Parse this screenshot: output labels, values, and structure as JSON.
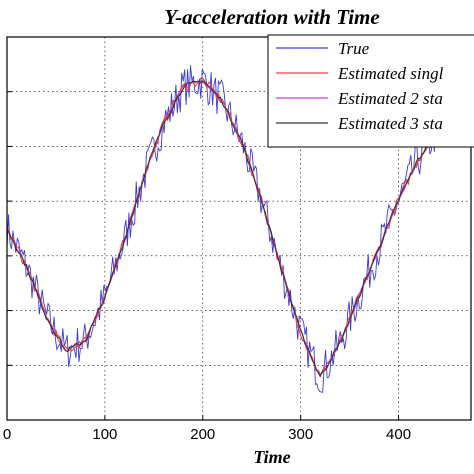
{
  "chart_data": {
    "type": "line",
    "title": "Y-acceleration with Time",
    "xlabel": "Time",
    "ylabel": "",
    "xlim": [
      0,
      474
    ],
    "ylim": [
      -2,
      2
    ],
    "x_ticks": [
      0,
      100,
      200,
      300,
      400
    ],
    "x_tick_labels": [
      "0",
      "100",
      "200",
      "300",
      "400"
    ],
    "grid": true,
    "legend_position": "top-right",
    "legend": [
      "True",
      "Estimated singl",
      "Estimated 2 sta",
      "Estimated 3 sta"
    ],
    "series_colors": [
      "#3b3bd8",
      "#e8404a",
      "#d040d0",
      "#333333"
    ],
    "x": [
      0,
      20,
      40,
      60,
      80,
      100,
      120,
      140,
      160,
      180,
      200,
      220,
      240,
      260,
      280,
      300,
      320,
      340,
      360,
      380,
      400,
      420,
      440,
      460,
      474
    ],
    "series": [
      {
        "name": "True",
        "values": [
          0.0,
          -0.4,
          -0.92,
          -1.28,
          -1.17,
          -0.72,
          -0.12,
          0.55,
          1.1,
          1.48,
          1.55,
          1.33,
          0.9,
          0.3,
          -0.42,
          -1.08,
          -1.55,
          -1.2,
          -0.7,
          -0.2,
          0.3,
          0.72,
          1.02,
          1.18,
          1.2
        ]
      },
      {
        "name": "Estimated singl",
        "values": [
          0.0,
          -0.4,
          -0.92,
          -1.28,
          -1.17,
          -0.72,
          -0.12,
          0.55,
          1.1,
          1.48,
          1.55,
          1.33,
          0.9,
          0.3,
          -0.42,
          -1.08,
          -1.55,
          -1.2,
          -0.7,
          -0.2,
          0.3,
          0.72,
          1.02,
          1.18,
          1.2
        ]
      },
      {
        "name": "Estimated 2 sta",
        "values": [
          0.0,
          -0.4,
          -0.92,
          -1.28,
          -1.17,
          -0.72,
          -0.12,
          0.55,
          1.1,
          1.48,
          1.55,
          1.33,
          0.9,
          0.3,
          -0.42,
          -1.08,
          -1.55,
          -1.2,
          -0.7,
          -0.2,
          0.3,
          0.72,
          1.02,
          1.18,
          1.2
        ]
      },
      {
        "name": "Estimated 3 sta",
        "values": [
          0.0,
          -0.4,
          -0.92,
          -1.28,
          -1.17,
          -0.72,
          -0.12,
          0.55,
          1.1,
          1.48,
          1.55,
          1.33,
          0.9,
          0.3,
          -0.42,
          -1.08,
          -1.55,
          -1.2,
          -0.7,
          -0.2,
          0.3,
          0.72,
          1.02,
          1.18,
          1.2
        ]
      }
    ]
  }
}
